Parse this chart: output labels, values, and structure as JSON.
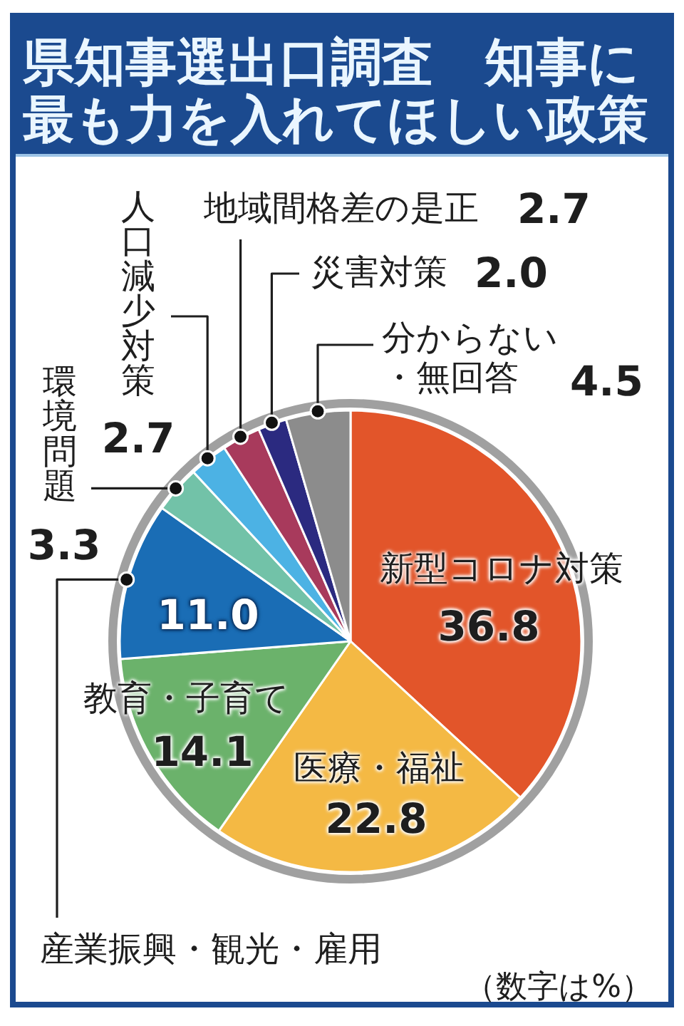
{
  "chart_data": {
    "type": "pie",
    "title": "県知事選出口調査　知事に最も力を入れてほしい政策",
    "categories": [
      "新型コロナ対策",
      "医療・福祉",
      "教育・子育て",
      "産業振興・観光・雇用",
      "環境問題",
      "人口減少対策",
      "地域間格差の是正",
      "災害対策",
      "分からない・無回答"
    ],
    "values": [
      36.8,
      22.8,
      14.1,
      11.0,
      3.3,
      2.7,
      2.7,
      2.0,
      4.5
    ],
    "value_labels": [
      "36.8",
      "22.8",
      "14.1",
      "11.0",
      "3.3",
      "2.7",
      "2.7",
      "2.0",
      "4.5"
    ],
    "colors": [
      "#e2552a",
      "#f4b944",
      "#6bb26b",
      "#1a6db5",
      "#72c2a8",
      "#4cb2e4",
      "#a83a5c",
      "#2b2a80",
      "#8c8c8c"
    ],
    "annotations": [
      "（数字は%）"
    ]
  }
}
